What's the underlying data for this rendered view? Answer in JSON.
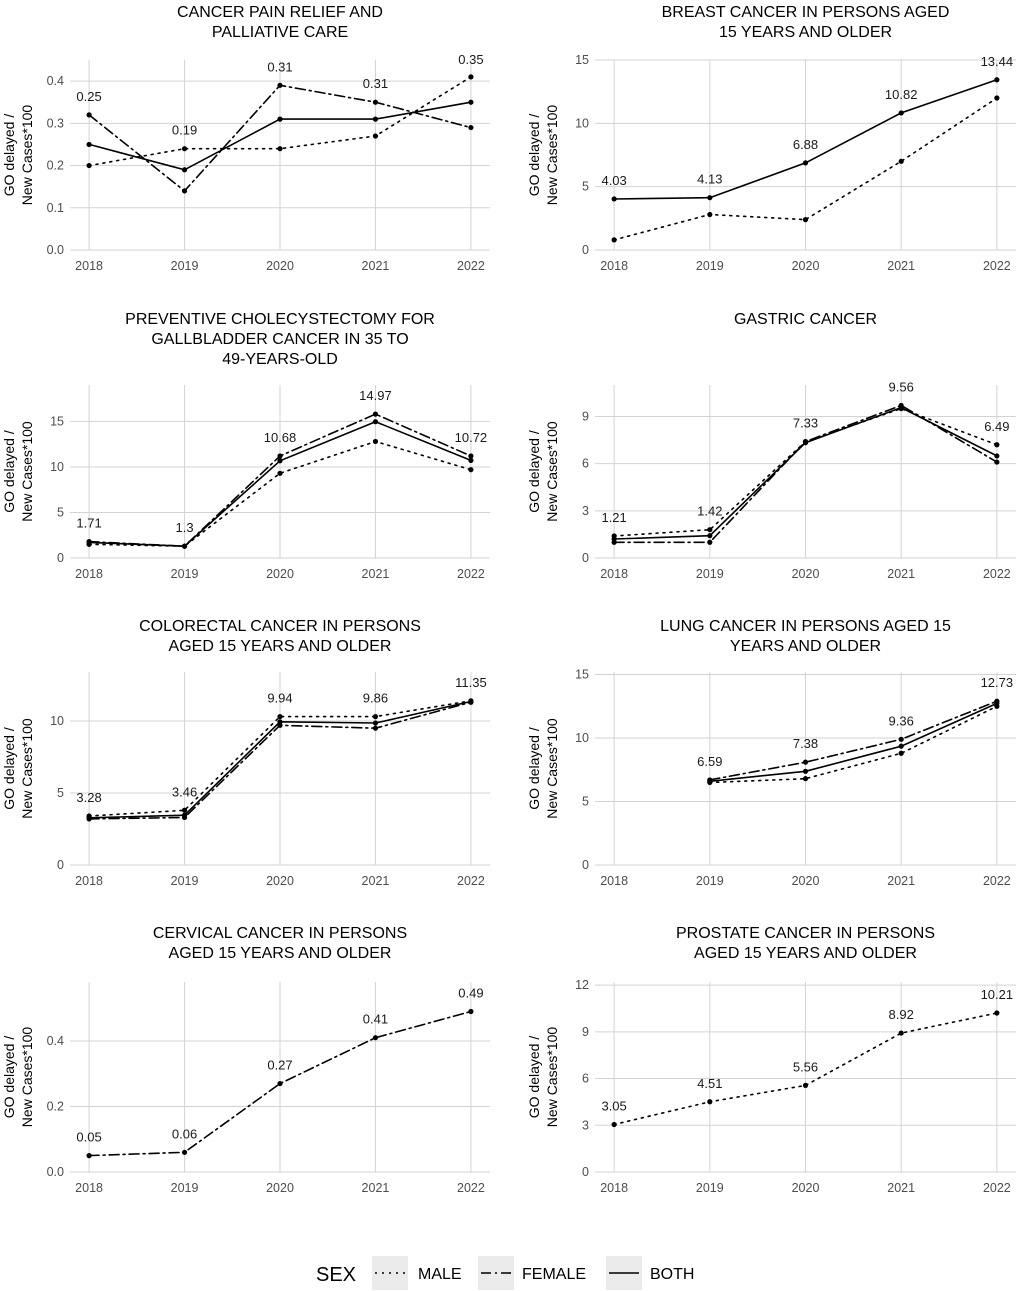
{
  "chart_data": [
    {
      "type": "line",
      "title_lines": [
        "CANCER PAIN RELIEF AND",
        "PALLIATIVE CARE"
      ],
      "ylabel_lines": [
        "GO delayed /",
        "New Cases*100"
      ],
      "x": [
        "2018",
        "2019",
        "2020",
        "2021",
        "2022"
      ],
      "ylim": [
        0,
        0.45
      ],
      "yticks": [
        0.0,
        0.1,
        0.2,
        0.3,
        0.4
      ],
      "ytick_labels": [
        "0.0",
        "0.1",
        "0.2",
        "0.3",
        "0.4"
      ],
      "series": [
        {
          "name": "MALE",
          "values": [
            0.2,
            0.24,
            0.24,
            0.27,
            0.41
          ]
        },
        {
          "name": "FEMALE",
          "values": [
            0.32,
            0.14,
            0.39,
            0.35,
            0.29
          ]
        },
        {
          "name": "BOTH",
          "values": [
            0.25,
            0.19,
            0.31,
            0.31,
            0.35
          ]
        }
      ],
      "labels": [
        "0.25",
        "0.19",
        "0.31",
        "0.31",
        "0.35"
      ]
    },
    {
      "type": "line",
      "title_lines": [
        "BREAST CANCER IN PERSONS AGED",
        "15 YEARS AND OLDER"
      ],
      "ylabel_lines": [
        "GO delayed /",
        "New Cases*100"
      ],
      "x": [
        "2018",
        "2019",
        "2020",
        "2021",
        "2022"
      ],
      "ylim": [
        0,
        15
      ],
      "yticks": [
        0,
        5,
        10,
        15
      ],
      "ytick_labels": [
        "0",
        "5",
        "10",
        "15"
      ],
      "series": [
        {
          "name": "MALE",
          "values": [
            0.8,
            2.8,
            2.4,
            7.0,
            12.0
          ]
        },
        {
          "name": "BOTH",
          "values": [
            4.03,
            4.13,
            6.88,
            10.82,
            13.44
          ]
        }
      ],
      "labels": [
        "4.03",
        "4.13",
        "6.88",
        "10.82",
        "13.44"
      ]
    },
    {
      "type": "line",
      "title_lines": [
        "PREVENTIVE CHOLECYSTECTOMY FOR",
        "GALLBLADDER CANCER IN 35 TO",
        "49-YEARS-OLD"
      ],
      "ylabel_lines": [
        "GO delayed /",
        "New Cases*100"
      ],
      "x": [
        "2018",
        "2019",
        "2020",
        "2021",
        "2022"
      ],
      "ylim": [
        0,
        19
      ],
      "yticks": [
        0,
        5,
        10,
        15
      ],
      "ytick_labels": [
        "0",
        "5",
        "10",
        "15"
      ],
      "series": [
        {
          "name": "MALE",
          "values": [
            1.5,
            1.3,
            9.3,
            12.8,
            9.7
          ]
        },
        {
          "name": "FEMALE",
          "values": [
            1.8,
            1.3,
            11.2,
            15.8,
            11.2
          ]
        },
        {
          "name": "BOTH",
          "values": [
            1.71,
            1.3,
            10.68,
            14.97,
            10.72
          ]
        }
      ],
      "labels": [
        "1.71",
        "1.3",
        "10.68",
        "14.97",
        "10.72"
      ]
    },
    {
      "type": "line",
      "title_lines": [
        "GASTRIC CANCER"
      ],
      "ylabel_lines": [
        "GO delayed /",
        "New Cases*100"
      ],
      "x": [
        "2018",
        "2019",
        "2020",
        "2021",
        "2022"
      ],
      "ylim": [
        0,
        11
      ],
      "yticks": [
        0,
        3,
        6,
        9
      ],
      "ytick_labels": [
        "0",
        "3",
        "6",
        "9"
      ],
      "series": [
        {
          "name": "MALE",
          "values": [
            1.4,
            1.8,
            7.4,
            9.5,
            7.2
          ]
        },
        {
          "name": "FEMALE",
          "values": [
            1.0,
            1.0,
            7.4,
            9.7,
            6.1
          ]
        },
        {
          "name": "BOTH",
          "values": [
            1.21,
            1.42,
            7.33,
            9.56,
            6.49
          ]
        }
      ],
      "labels": [
        "1.21",
        "1.42",
        "7.33",
        "9.56",
        "6.49"
      ]
    },
    {
      "type": "line",
      "title_lines": [
        "COLORECTAL CANCER IN PERSONS",
        "AGED 15 YEARS AND OLDER"
      ],
      "ylabel_lines": [
        "GO delayed /",
        "New Cases*100"
      ],
      "x": [
        "2018",
        "2019",
        "2020",
        "2021",
        "2022"
      ],
      "ylim": [
        0,
        13.4
      ],
      "yticks": [
        0,
        5,
        10
      ],
      "ytick_labels": [
        "0",
        "5",
        "10"
      ],
      "series": [
        {
          "name": "MALE",
          "values": [
            3.4,
            3.8,
            10.3,
            10.3,
            11.4
          ]
        },
        {
          "name": "FEMALE",
          "values": [
            3.2,
            3.3,
            9.7,
            9.5,
            11.3
          ]
        },
        {
          "name": "BOTH",
          "values": [
            3.28,
            3.46,
            9.94,
            9.86,
            11.35
          ]
        }
      ],
      "labels": [
        "3.28",
        "3.46",
        "9.94",
        "9.86",
        "11.35"
      ]
    },
    {
      "type": "line",
      "title_lines": [
        "LUNG CANCER IN PERSONS AGED 15",
        "YEARS AND OLDER"
      ],
      "ylabel_lines": [
        "GO delayed /",
        "New Cases*100"
      ],
      "x": [
        "2018",
        "2019",
        "2020",
        "2021",
        "2022"
      ],
      "ylim": [
        0,
        15.2
      ],
      "yticks": [
        0,
        5,
        10,
        15
      ],
      "ytick_labels": [
        "0",
        "5",
        "10",
        "15"
      ],
      "series": [
        {
          "name": "MALE",
          "values": [
            null,
            6.5,
            6.8,
            8.8,
            12.5
          ]
        },
        {
          "name": "FEMALE",
          "values": [
            null,
            6.7,
            8.1,
            9.9,
            12.9
          ]
        },
        {
          "name": "BOTH",
          "values": [
            null,
            6.59,
            7.38,
            9.36,
            12.73
          ]
        }
      ],
      "labels": [
        "",
        "6.59",
        "7.38",
        "9.36",
        "12.73"
      ]
    },
    {
      "type": "line",
      "title_lines": [
        "CERVICAL CANCER IN PERSONS",
        "AGED 15 YEARS AND OLDER"
      ],
      "ylabel_lines": [
        "GO delayed /",
        "New Cases*100"
      ],
      "x": [
        "2018",
        "2019",
        "2020",
        "2021",
        "2022"
      ],
      "ylim": [
        0,
        0.58
      ],
      "yticks": [
        0.0,
        0.2,
        0.4
      ],
      "ytick_labels": [
        "0.0",
        "0.2",
        "0.4"
      ],
      "series": [
        {
          "name": "FEMALE",
          "values": [
            0.05,
            0.06,
            0.27,
            0.41,
            0.49
          ]
        }
      ],
      "labels": [
        "0.05",
        "0.06",
        "0.27",
        "0.41",
        "0.49"
      ]
    },
    {
      "type": "line",
      "title_lines": [
        "PROSTATE CANCER IN PERSONS",
        "AGED 15 YEARS AND OLDER"
      ],
      "ylabel_lines": [
        "GO delayed /",
        "New Cases*100"
      ],
      "x": [
        "2018",
        "2019",
        "2020",
        "2021",
        "2022"
      ],
      "ylim": [
        0,
        12.2
      ],
      "yticks": [
        0,
        3,
        6,
        9,
        12
      ],
      "ytick_labels": [
        "0",
        "3",
        "6",
        "9",
        "12"
      ],
      "series": [
        {
          "name": "MALE",
          "values": [
            3.05,
            4.51,
            5.56,
            8.92,
            10.21
          ]
        }
      ],
      "labels": [
        "3.05",
        "4.51",
        "5.56",
        "8.92",
        "10.21"
      ]
    }
  ],
  "legend": {
    "title": "SEX",
    "position": "bottom",
    "items": [
      {
        "name": "MALE",
        "label": "MALE"
      },
      {
        "name": "FEMALE",
        "label": "FEMALE"
      },
      {
        "name": "BOTH",
        "label": "BOTH"
      }
    ]
  },
  "styles": {
    "line_color": "#000000",
    "grid_color": "#d3d3d3",
    "tick_color": "#4d4d4d",
    "key_bg": "#ebebeb",
    "dash": {
      "MALE": "2 5",
      "FEMALE": "10 4 2 4",
      "BOTH": ""
    }
  }
}
